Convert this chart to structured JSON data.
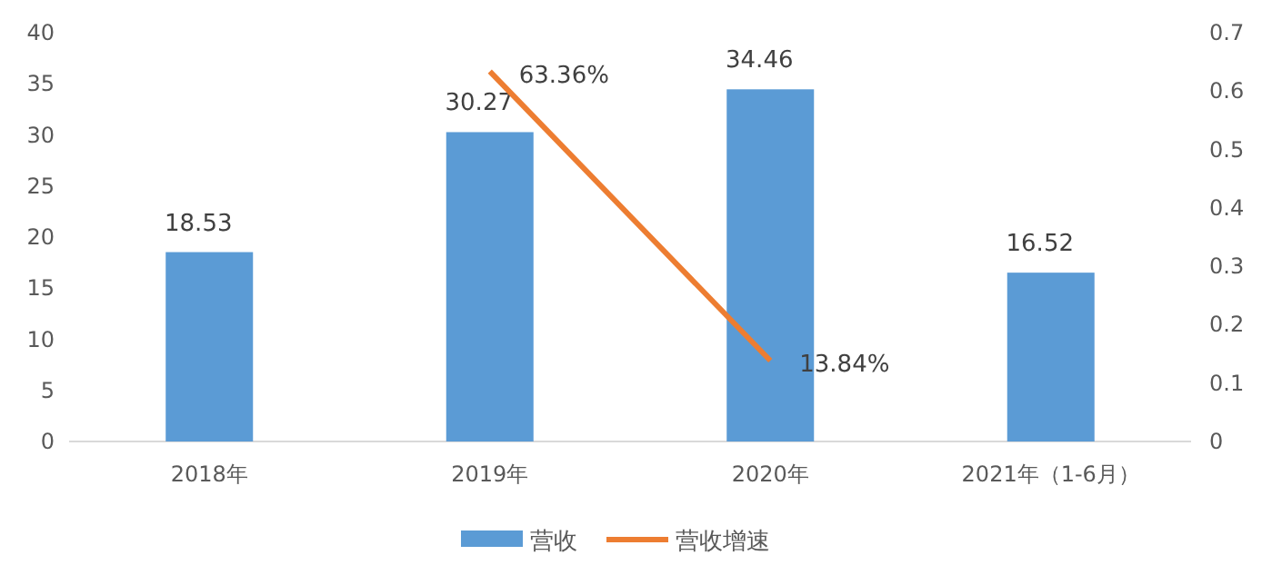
{
  "chart_data": {
    "type": "bar",
    "categories": [
      "2018年",
      "2019年",
      "2020年",
      "2021年（1-6月）"
    ],
    "series": [
      {
        "name": "营收",
        "color": "#5b9bd5",
        "values": [
          18.53,
          30.27,
          34.46,
          16.52
        ]
      },
      {
        "name": "营收增速",
        "type": "line",
        "axis": "y2",
        "color": "#ed7d31",
        "values": [
          null,
          0.6336,
          0.1384,
          null
        ],
        "value_labels": [
          null,
          "63.36%",
          "13.84%",
          null
        ]
      }
    ],
    "ylim": [
      0,
      40
    ],
    "yticks": [
      0,
      5,
      10,
      15,
      20,
      25,
      30,
      35,
      40
    ],
    "y2lim": [
      0,
      0.7
    ],
    "y2ticks": [
      0,
      0.1,
      0.2,
      0.3,
      0.4,
      0.5,
      0.6,
      0.7
    ],
    "data_labels": true,
    "legend": "bottom",
    "marker": "none",
    "line_style": "solid"
  }
}
